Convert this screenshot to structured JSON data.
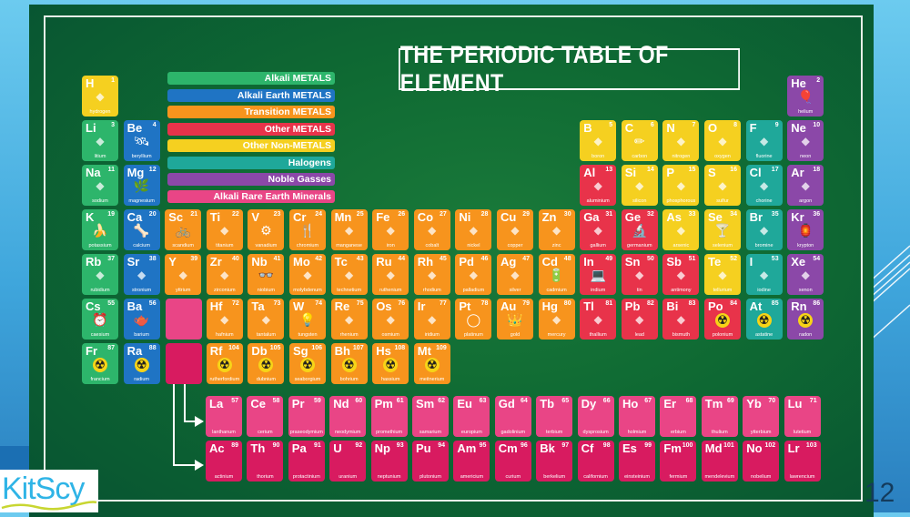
{
  "title": "THE PERIODIC TABLE OF ELEMENT",
  "page_number": "12",
  "logo": "KitScy",
  "colors": {
    "alkali": "#2db56b",
    "alkali_earth": "#1f74c4",
    "transition": "#f7941d",
    "other_metal": "#e8334a",
    "nonmetal": "#f5d020",
    "halogen": "#1fa89a",
    "noble": "#8b48a8",
    "lanthanide": "#e94586",
    "actinide": "#d81b60"
  },
  "legend": [
    {
      "label": "Alkali METALS",
      "cat": "alkali"
    },
    {
      "label": "Alkali Earth METALS",
      "cat": "alkali_earth"
    },
    {
      "label": "Transition METALS",
      "cat": "transition"
    },
    {
      "label": "Other METALS",
      "cat": "other_metal"
    },
    {
      "label": "Other Non-METALS",
      "cat": "nonmetal"
    },
    {
      "label": "Halogens",
      "cat": "halogen"
    },
    {
      "label": "Noble Gasses",
      "cat": "noble"
    },
    {
      "label": "Alkali Rare Earth Minerals",
      "cat": "lanthanide"
    }
  ],
  "elements": [
    {
      "s": "H",
      "n": 1,
      "name": "hydrogen",
      "c": "nonmetal",
      "col": 1,
      "row": 1,
      "icon": "blimp"
    },
    {
      "s": "He",
      "n": 2,
      "name": "helium",
      "c": "noble",
      "col": 18,
      "row": 1,
      "icon": "balloon"
    },
    {
      "s": "Li",
      "n": 3,
      "name": "litium",
      "c": "alkali",
      "col": 1,
      "row": 2,
      "icon": "microwave"
    },
    {
      "s": "Be",
      "n": 4,
      "name": "beryllium",
      "c": "alkali_earth",
      "col": 2,
      "row": 2,
      "icon": "satellite"
    },
    {
      "s": "B",
      "n": 5,
      "name": "boron",
      "c": "nonmetal",
      "col": 13,
      "row": 2,
      "icon": "measuring-cup"
    },
    {
      "s": "C",
      "n": 6,
      "name": "carbon",
      "c": "nonmetal",
      "col": 14,
      "row": 2,
      "icon": "pencil"
    },
    {
      "s": "N",
      "n": 7,
      "name": "nitrogen",
      "c": "nonmetal",
      "col": 15,
      "row": 2,
      "icon": "dynamite"
    },
    {
      "s": "O",
      "n": 8,
      "name": "oxygen",
      "c": "nonmetal",
      "col": 16,
      "row": 2,
      "icon": "oxygen-tank"
    },
    {
      "s": "F",
      "n": 9,
      "name": "fluorine",
      "c": "halogen",
      "col": 17,
      "row": 2,
      "icon": "toothbrush"
    },
    {
      "s": "Ne",
      "n": 10,
      "name": "neon",
      "c": "noble",
      "col": 18,
      "row": 2,
      "icon": "neon-sign"
    },
    {
      "s": "Na",
      "n": 11,
      "name": "sodium",
      "c": "alkali",
      "col": 1,
      "row": 3,
      "icon": "salt-shaker"
    },
    {
      "s": "Mg",
      "n": 12,
      "name": "magnesium",
      "c": "alkali_earth",
      "col": 2,
      "row": 3,
      "icon": "plant"
    },
    {
      "s": "Al",
      "n": 13,
      "name": "aluminium",
      "c": "other_metal",
      "col": 13,
      "row": 3,
      "icon": "soda-can"
    },
    {
      "s": "Si",
      "n": 14,
      "name": "silicon",
      "c": "nonmetal",
      "col": 14,
      "row": 3,
      "icon": "chip"
    },
    {
      "s": "P",
      "n": 15,
      "name": "phosphorous",
      "c": "nonmetal",
      "col": 15,
      "row": 3,
      "icon": "matchbox"
    },
    {
      "s": "S",
      "n": 16,
      "name": "sulfur",
      "c": "nonmetal",
      "col": 16,
      "row": 3,
      "icon": "tire"
    },
    {
      "s": "Cl",
      "n": 17,
      "name": "chorine",
      "c": "halogen",
      "col": 17,
      "row": 3,
      "icon": "spray-bottle"
    },
    {
      "s": "Ar",
      "n": 18,
      "name": "argon",
      "c": "noble",
      "col": 18,
      "row": 3,
      "icon": "extinguisher"
    },
    {
      "s": "K",
      "n": 19,
      "name": "potassium",
      "c": "alkali",
      "col": 1,
      "row": 4,
      "icon": "banana"
    },
    {
      "s": "Ca",
      "n": 20,
      "name": "calcium",
      "c": "alkali_earth",
      "col": 2,
      "row": 4,
      "icon": "bone"
    },
    {
      "s": "Sc",
      "n": 21,
      "name": "scandium",
      "c": "transition",
      "col": 3,
      "row": 4,
      "icon": "bicycle"
    },
    {
      "s": "Ti",
      "n": 22,
      "name": "titanium",
      "c": "transition",
      "col": 4,
      "row": 4,
      "icon": "racket"
    },
    {
      "s": "V",
      "n": 23,
      "name": "vanadium",
      "c": "transition",
      "col": 5,
      "row": 4,
      "icon": "gears"
    },
    {
      "s": "Cr",
      "n": 24,
      "name": "chromium",
      "c": "transition",
      "col": 6,
      "row": 4,
      "icon": "cutlery"
    },
    {
      "s": "Mn",
      "n": 25,
      "name": "manganese",
      "c": "transition",
      "col": 7,
      "row": 4,
      "icon": "steel-beam"
    },
    {
      "s": "Fe",
      "n": 26,
      "name": "iron",
      "c": "transition",
      "col": 8,
      "row": 4,
      "icon": "fence"
    },
    {
      "s": "Co",
      "n": 27,
      "name": "cobalt",
      "c": "transition",
      "col": 9,
      "row": 4,
      "icon": "magnet"
    },
    {
      "s": "Ni",
      "n": 28,
      "name": "nickel",
      "c": "transition",
      "col": 10,
      "row": 4,
      "icon": "coin"
    },
    {
      "s": "Cu",
      "n": 29,
      "name": "copper",
      "c": "transition",
      "col": 11,
      "row": 4,
      "icon": "wire"
    },
    {
      "s": "Zn",
      "n": 30,
      "name": "zinc",
      "c": "transition",
      "col": 12,
      "row": 4,
      "icon": "steak"
    },
    {
      "s": "Ga",
      "n": 31,
      "name": "gallium",
      "c": "other_metal",
      "col": 13,
      "row": 4,
      "icon": "led"
    },
    {
      "s": "Ge",
      "n": 32,
      "name": "germanium",
      "c": "other_metal",
      "col": 14,
      "row": 4,
      "icon": "microscope"
    },
    {
      "s": "As",
      "n": 33,
      "name": "arsenic",
      "c": "nonmetal",
      "col": 15,
      "row": 4,
      "icon": "poison-bottle"
    },
    {
      "s": "Se",
      "n": 34,
      "name": "selenium",
      "c": "nonmetal",
      "col": 16,
      "row": 4,
      "icon": "martini-glass"
    },
    {
      "s": "Br",
      "n": 35,
      "name": "bromine",
      "c": "halogen",
      "col": 17,
      "row": 4,
      "icon": "jug"
    },
    {
      "s": "Kr",
      "n": 36,
      "name": "krypton",
      "c": "noble",
      "col": 18,
      "row": 4,
      "icon": "lantern"
    },
    {
      "s": "Rb",
      "n": 37,
      "name": "rubidium",
      "c": "alkali",
      "col": 1,
      "row": 5,
      "icon": "firework"
    },
    {
      "s": "Sr",
      "n": 38,
      "name": "stronium",
      "c": "alkali_earth",
      "col": 2,
      "row": 5,
      "icon": "crt-monitor"
    },
    {
      "s": "Y",
      "n": 39,
      "name": "yttrium",
      "c": "transition",
      "col": 3,
      "row": 5,
      "icon": "gem"
    },
    {
      "s": "Zr",
      "n": 40,
      "name": "zirconium",
      "c": "transition",
      "col": 4,
      "row": 5,
      "icon": "tooth"
    },
    {
      "s": "Nb",
      "n": 41,
      "name": "niobium",
      "c": "transition",
      "col": 5,
      "row": 5,
      "icon": "glasses"
    },
    {
      "s": "Mo",
      "n": 42,
      "name": "molybdenum",
      "c": "transition",
      "col": 6,
      "row": 5,
      "icon": "guitar-pick"
    },
    {
      "s": "Tc",
      "n": 43,
      "name": "technetium",
      "c": "transition",
      "col": 7,
      "row": 5,
      "icon": "x-ray"
    },
    {
      "s": "Ru",
      "n": 44,
      "name": "ruthenium",
      "c": "transition",
      "col": 8,
      "row": 5,
      "icon": "circuit"
    },
    {
      "s": "Rh",
      "n": 45,
      "name": "rhodium",
      "c": "transition",
      "col": 9,
      "row": 5,
      "icon": "fountain-pen"
    },
    {
      "s": "Pd",
      "n": 46,
      "name": "palladium",
      "c": "transition",
      "col": 10,
      "row": 5,
      "icon": "belt"
    },
    {
      "s": "Ag",
      "n": 47,
      "name": "silver",
      "c": "transition",
      "col": 11,
      "row": 5,
      "icon": "spoon"
    },
    {
      "s": "Cd",
      "n": 48,
      "name": "cadmium",
      "c": "transition",
      "col": 12,
      "row": 5,
      "icon": "battery"
    },
    {
      "s": "In",
      "n": 49,
      "name": "indium",
      "c": "other_metal",
      "col": 13,
      "row": 5,
      "icon": "laptop"
    },
    {
      "s": "Sn",
      "n": 50,
      "name": "tin",
      "c": "other_metal",
      "col": 14,
      "row": 5,
      "icon": "tin-can"
    },
    {
      "s": "Sb",
      "n": 51,
      "name": "antimony",
      "c": "other_metal",
      "col": 15,
      "row": 5,
      "icon": "brick"
    },
    {
      "s": "Te",
      "n": 52,
      "name": "tellurium",
      "c": "nonmetal",
      "col": 16,
      "row": 5,
      "icon": "disc"
    },
    {
      "s": "I",
      "n": 53,
      "name": "iodine",
      "c": "halogen",
      "col": 17,
      "row": 5,
      "icon": "medicine-bottle"
    },
    {
      "s": "Xe",
      "n": 54,
      "name": "xenon",
      "c": "noble",
      "col": 18,
      "row": 5,
      "icon": "flashlight"
    },
    {
      "s": "Cs",
      "n": 55,
      "name": "caesium",
      "c": "alkali",
      "col": 1,
      "row": 6,
      "icon": "clock"
    },
    {
      "s": "Ba",
      "n": 56,
      "name": "barium",
      "c": "alkali_earth",
      "col": 2,
      "row": 6,
      "icon": "teapot"
    },
    {
      "s": "Hf",
      "n": 72,
      "name": "hafnium",
      "c": "transition",
      "col": 4,
      "row": 6,
      "icon": "rocket"
    },
    {
      "s": "Ta",
      "n": 73,
      "name": "tantalum",
      "c": "transition",
      "col": 5,
      "row": 6,
      "icon": "camera-lens"
    },
    {
      "s": "W",
      "n": 74,
      "name": "tungsten",
      "c": "transition",
      "col": 6,
      "row": 6,
      "icon": "light-bulb"
    },
    {
      "s": "Re",
      "n": 75,
      "name": "rhenium",
      "c": "transition",
      "col": 7,
      "row": 6,
      "icon": "fuel-can"
    },
    {
      "s": "Os",
      "n": 76,
      "name": "osmium",
      "c": "transition",
      "col": 8,
      "row": 6,
      "icon": "paper"
    },
    {
      "s": "Ir",
      "n": 77,
      "name": "iridium",
      "c": "transition",
      "col": 9,
      "row": 6,
      "icon": "spark-plug"
    },
    {
      "s": "Pt",
      "n": 78,
      "name": "platinum",
      "c": "transition",
      "col": 10,
      "row": 6,
      "icon": "ring"
    },
    {
      "s": "Au",
      "n": 79,
      "name": "gold",
      "c": "transition",
      "col": 11,
      "row": 6,
      "icon": "crown"
    },
    {
      "s": "Hg",
      "n": 80,
      "name": "mercury",
      "c": "transition",
      "col": 12,
      "row": 6,
      "icon": "thermometer"
    },
    {
      "s": "Tl",
      "n": 81,
      "name": "thallium",
      "c": "other_metal",
      "col": 13,
      "row": 6,
      "icon": "spray-can"
    },
    {
      "s": "Pb",
      "n": 82,
      "name": "lead",
      "c": "other_metal",
      "col": 14,
      "row": 6,
      "icon": "battery-box"
    },
    {
      "s": "Bi",
      "n": 83,
      "name": "bismuth",
      "c": "other_metal",
      "col": 15,
      "row": 6,
      "icon": "lipstick"
    },
    {
      "s": "Po",
      "n": 84,
      "name": "polonium",
      "c": "other_metal",
      "col": 16,
      "row": 6,
      "icon": "radiation"
    },
    {
      "s": "At",
      "n": 85,
      "name": "astatine",
      "c": "halogen",
      "col": 17,
      "row": 6,
      "icon": "radiation"
    },
    {
      "s": "Rn",
      "n": 86,
      "name": "radon",
      "c": "noble",
      "col": 18,
      "row": 6,
      "icon": "radiation"
    },
    {
      "s": "Fr",
      "n": 87,
      "name": "francium",
      "c": "alkali",
      "col": 1,
      "row": 7,
      "icon": "radiation"
    },
    {
      "s": "Ra",
      "n": 88,
      "name": "radium",
      "c": "alkali_earth",
      "col": 2,
      "row": 7,
      "icon": "radiation"
    },
    {
      "s": "Rf",
      "n": 104,
      "name": "rutherfordium",
      "c": "transition",
      "col": 4,
      "row": 7,
      "icon": "radiation"
    },
    {
      "s": "Db",
      "n": 105,
      "name": "dubnium",
      "c": "transition",
      "col": 5,
      "row": 7,
      "icon": "radiation"
    },
    {
      "s": "Sg",
      "n": 106,
      "name": "seaborgium",
      "c": "transition",
      "col": 6,
      "row": 7,
      "icon": "radiation"
    },
    {
      "s": "Bh",
      "n": 107,
      "name": "bohrium",
      "c": "transition",
      "col": 7,
      "row": 7,
      "icon": "radiation"
    },
    {
      "s": "Hs",
      "n": 108,
      "name": "hassium",
      "c": "transition",
      "col": 8,
      "row": 7,
      "icon": "radiation"
    },
    {
      "s": "Mt",
      "n": 109,
      "name": "meitnerium",
      "c": "transition",
      "col": 9,
      "row": 7,
      "icon": "radiation"
    }
  ],
  "lanthanides": [
    {
      "s": "La",
      "n": 57,
      "name": "lanthanum"
    },
    {
      "s": "Ce",
      "n": 58,
      "name": "cerium"
    },
    {
      "s": "Pr",
      "n": 59,
      "name": "praseodymium"
    },
    {
      "s": "Nd",
      "n": 60,
      "name": "neodymium"
    },
    {
      "s": "Pm",
      "n": 61,
      "name": "promethium"
    },
    {
      "s": "Sm",
      "n": 62,
      "name": "samarium"
    },
    {
      "s": "Eu",
      "n": 63,
      "name": "europium"
    },
    {
      "s": "Gd",
      "n": 64,
      "name": "gadolinium"
    },
    {
      "s": "Tb",
      "n": 65,
      "name": "terbium"
    },
    {
      "s": "Dy",
      "n": 66,
      "name": "dysprosium"
    },
    {
      "s": "Ho",
      "n": 67,
      "name": "holmium"
    },
    {
      "s": "Er",
      "n": 68,
      "name": "erbium"
    },
    {
      "s": "Tm",
      "n": 69,
      "name": "thulium"
    },
    {
      "s": "Yb",
      "n": 70,
      "name": "ytterbium"
    },
    {
      "s": "Lu",
      "n": 71,
      "name": "lutetium"
    }
  ],
  "actinides": [
    {
      "s": "Ac",
      "n": 89,
      "name": "actinium"
    },
    {
      "s": "Th",
      "n": 90,
      "name": "thorium"
    },
    {
      "s": "Pa",
      "n": 91,
      "name": "protactinium"
    },
    {
      "s": "U",
      "n": 92,
      "name": "uranium"
    },
    {
      "s": "Np",
      "n": 93,
      "name": "neptunium"
    },
    {
      "s": "Pu",
      "n": 94,
      "name": "plutonium"
    },
    {
      "s": "Am",
      "n": 95,
      "name": "americium"
    },
    {
      "s": "Cm",
      "n": 96,
      "name": "curium"
    },
    {
      "s": "Bk",
      "n": 97,
      "name": "berkelium"
    },
    {
      "s": "Cf",
      "n": 98,
      "name": "californium"
    },
    {
      "s": "Es",
      "n": 99,
      "name": "einsteinium"
    },
    {
      "s": "Fm",
      "n": 100,
      "name": "fermium"
    },
    {
      "s": "Md",
      "n": 101,
      "name": "mendelevium"
    },
    {
      "s": "No",
      "n": 102,
      "name": "nobelium"
    },
    {
      "s": "Lr",
      "n": 103,
      "name": "lawrencium"
    }
  ],
  "icon_glyphs": {
    "radiation": "☢",
    "balloon": "🎈",
    "banana": "🍌",
    "bone": "🦴",
    "bicycle": "🚲",
    "light-bulb": "💡",
    "crown": "👑",
    "ring": "◯",
    "clock": "⏰",
    "teapot": "🫖",
    "laptop": "💻",
    "glasses": "👓",
    "pencil": "✏",
    "gears": "⚙",
    "cutlery": "🍴",
    "battery": "🔋",
    "microscope": "🔬",
    "martini-glass": "🍸",
    "lantern": "🏮",
    "satellite": "🛰",
    "plant": "🌿",
    "default": "◆"
  }
}
